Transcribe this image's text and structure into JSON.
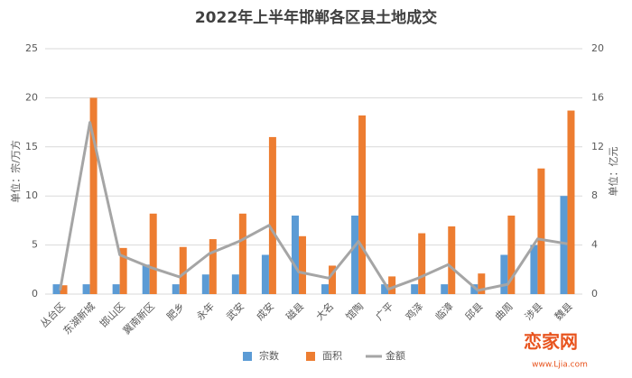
{
  "chart_data": {
    "type": "bar_line",
    "title": "2022年上半年邯郸各区县土地成交",
    "y_label": "单位：宗/万方",
    "y2_label": "单位：亿元",
    "categories": [
      "丛台区",
      "东湖新城",
      "邯山区",
      "冀南新区",
      "肥乡",
      "永年",
      "武安",
      "成安",
      "磁县",
      "大名",
      "馆陶",
      "广平",
      "鸡泽",
      "临漳",
      "邱县",
      "曲周",
      "涉县",
      "魏县"
    ],
    "series": [
      {
        "name": "宗数",
        "type": "bar",
        "color": "#5b9bd5",
        "values": [
          1,
          1,
          1,
          3,
          1,
          2,
          2,
          4,
          8,
          1,
          8,
          1,
          1,
          1,
          1,
          4,
          5,
          10
        ]
      },
      {
        "name": "面积",
        "type": "bar",
        "color": "#ed7d31",
        "values": [
          0.9,
          20,
          4.7,
          8.2,
          4.8,
          5.6,
          8.2,
          16,
          5.9,
          2.9,
          18.2,
          1.8,
          6.2,
          6.9,
          2.1,
          8,
          12.8,
          18.7
        ]
      },
      {
        "name": "金额",
        "type": "line",
        "axis": "y2",
        "color": "#a5a5a5",
        "values": [
          0.3,
          14,
          3.2,
          2.2,
          1.4,
          3.3,
          4.3,
          5.6,
          1.8,
          1.3,
          4.3,
          0.4,
          1.3,
          2.4,
          0.3,
          0.8,
          4.5,
          4.1
        ]
      }
    ],
    "ylim": [
      0,
      25
    ],
    "yticks": [
      0,
      5,
      10,
      15,
      20,
      25
    ],
    "y2lim": [
      0,
      20
    ],
    "y2ticks": [
      0,
      4,
      8,
      12,
      16,
      20
    ],
    "grid": true,
    "legend": "bottom",
    "watermark": {
      "logo": "恋家网",
      "url": "www.Ljia.com"
    }
  }
}
